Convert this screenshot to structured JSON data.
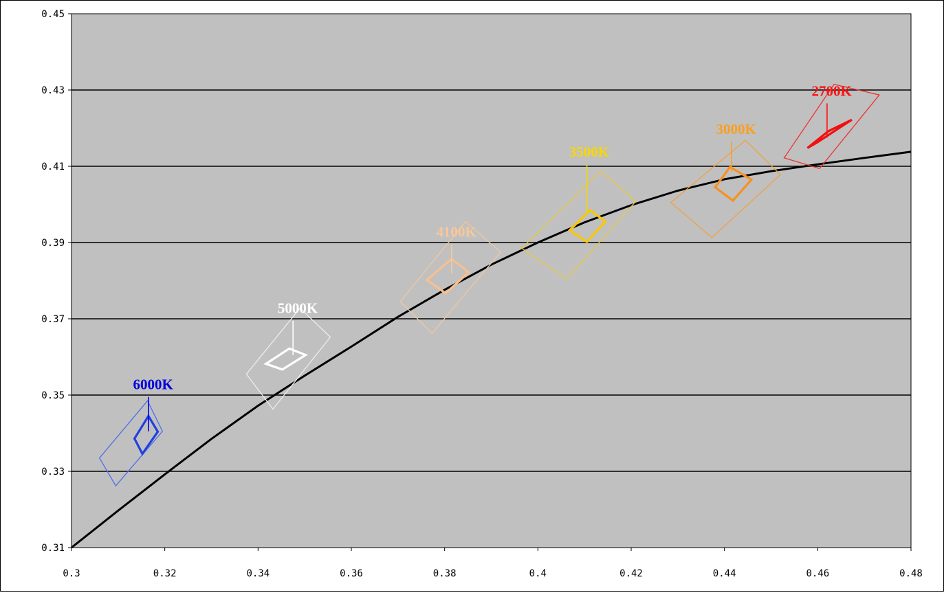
{
  "chart_data": {
    "type": "scatter",
    "title": "",
    "xlabel": "",
    "ylabel": "",
    "xlim": [
      0.3,
      0.48
    ],
    "ylim": [
      0.31,
      0.45
    ],
    "xticks": [
      "0.3",
      "0.32",
      "0.34",
      "0.36",
      "0.38",
      "0.4",
      "0.42",
      "0.44",
      "0.46",
      "0.48"
    ],
    "yticks": [
      "0.31",
      "0.33",
      "0.35",
      "0.37",
      "0.39",
      "0.41",
      "0.43",
      "0.45"
    ],
    "gridlines": "horizontal",
    "plot_background": "#c0c0c0",
    "planckian_locus": {
      "x": [
        0.3,
        0.31,
        0.32,
        0.33,
        0.34,
        0.35,
        0.36,
        0.37,
        0.38,
        0.39,
        0.4,
        0.41,
        0.42,
        0.43,
        0.44,
        0.45,
        0.46,
        0.47,
        0.48
      ],
      "y": [
        0.31,
        0.3197,
        0.3292,
        0.3385,
        0.3472,
        0.3551,
        0.3627,
        0.3705,
        0.3776,
        0.3842,
        0.39,
        0.3953,
        0.3998,
        0.4036,
        0.4066,
        0.4087,
        0.4105,
        0.4122,
        0.4138
      ]
    },
    "series": [
      {
        "name": "6000K",
        "color": "#0000e0",
        "outer_color": "#4f6fe8",
        "inner_color": "#2040e0",
        "label_pos": [
          0.3175,
          0.3515
        ],
        "leader": [
          [
            0.3165,
            0.3495
          ],
          [
            0.3165,
            0.3405
          ]
        ],
        "outer": [
          [
            0.306,
            0.3335
          ],
          [
            0.3163,
            0.3485
          ],
          [
            0.3195,
            0.3405
          ],
          [
            0.3095,
            0.3262
          ]
        ],
        "inner": [
          [
            0.3135,
            0.3386
          ],
          [
            0.3165,
            0.3445
          ],
          [
            0.3185,
            0.3404
          ],
          [
            0.3152,
            0.3346
          ]
        ]
      },
      {
        "name": "5000K",
        "color": "#ffffff",
        "outer_color": "#ececec",
        "inner_color": "#ffffff",
        "label_pos": [
          0.3485,
          0.3715
        ],
        "leader": [
          [
            0.3475,
            0.3695
          ],
          [
            0.3475,
            0.3605
          ]
        ],
        "outer": [
          [
            0.3375,
            0.3555
          ],
          [
            0.349,
            0.3728
          ],
          [
            0.3555,
            0.3652
          ],
          [
            0.3432,
            0.3463
          ]
        ],
        "inner": [
          [
            0.3417,
            0.3582
          ],
          [
            0.3467,
            0.3622
          ],
          [
            0.3502,
            0.3605
          ],
          [
            0.3452,
            0.3567
          ]
        ]
      },
      {
        "name": "4100K",
        "color": "#f8c898",
        "outer_color": "#f0c8a0",
        "inner_color": "#f8c090",
        "label_pos": [
          0.3825,
          0.3915
        ],
        "leader": [
          [
            0.3815,
            0.3895
          ],
          [
            0.3815,
            0.3818
          ]
        ],
        "outer": [
          [
            0.3705,
            0.3745
          ],
          [
            0.3845,
            0.3955
          ],
          [
            0.392,
            0.3875
          ],
          [
            0.3773,
            0.3662
          ]
        ],
        "inner": [
          [
            0.3762,
            0.3802
          ],
          [
            0.3815,
            0.3857
          ],
          [
            0.3852,
            0.3822
          ],
          [
            0.3802,
            0.3767
          ]
        ]
      },
      {
        "name": "3500K",
        "color": "#f8d800",
        "outer_color": "#e8c840",
        "inner_color": "#f8c800",
        "label_pos": [
          0.411,
          0.4125
        ],
        "leader": [
          [
            0.4105,
            0.4105
          ],
          [
            0.4105,
            0.3975
          ]
        ],
        "outer": [
          [
            0.3965,
            0.3885
          ],
          [
            0.4135,
            0.4088
          ],
          [
            0.421,
            0.4008
          ],
          [
            0.4062,
            0.3805
          ]
        ],
        "inner": [
          [
            0.4068,
            0.3932
          ],
          [
            0.4112,
            0.3985
          ],
          [
            0.4145,
            0.3955
          ],
          [
            0.4105,
            0.3902
          ]
        ]
      },
      {
        "name": "3000K",
        "color": "#f8a020",
        "outer_color": "#f0a040",
        "inner_color": "#f89020",
        "label_pos": [
          0.4425,
          0.4185
        ],
        "leader": [
          [
            0.4415,
            0.4165
          ],
          [
            0.4415,
            0.4085
          ]
        ],
        "outer": [
          [
            0.4285,
            0.4005
          ],
          [
            0.4445,
            0.4168
          ],
          [
            0.452,
            0.4078
          ],
          [
            0.4373,
            0.3913
          ]
        ],
        "inner": [
          [
            0.438,
            0.4045
          ],
          [
            0.4412,
            0.4098
          ],
          [
            0.4458,
            0.4065
          ],
          [
            0.4418,
            0.401
          ]
        ]
      },
      {
        "name": "2700K",
        "color": "#ff1010",
        "outer_color": "#f03030",
        "inner_color": "#f01010",
        "label_pos": [
          0.463,
          0.4285
        ],
        "leader": [
          [
            0.462,
            0.4265
          ],
          [
            0.462,
            0.4175
          ]
        ],
        "outer": [
          [
            0.4528,
            0.4122
          ],
          [
            0.4635,
            0.4315
          ],
          [
            0.4732,
            0.4287
          ],
          [
            0.4604,
            0.4094
          ]
        ],
        "inner": [
          [
            0.4578,
            0.4148
          ],
          [
            0.4623,
            0.4192
          ],
          [
            0.4673,
            0.4222
          ],
          [
            0.4598,
            0.4162
          ]
        ]
      }
    ]
  }
}
